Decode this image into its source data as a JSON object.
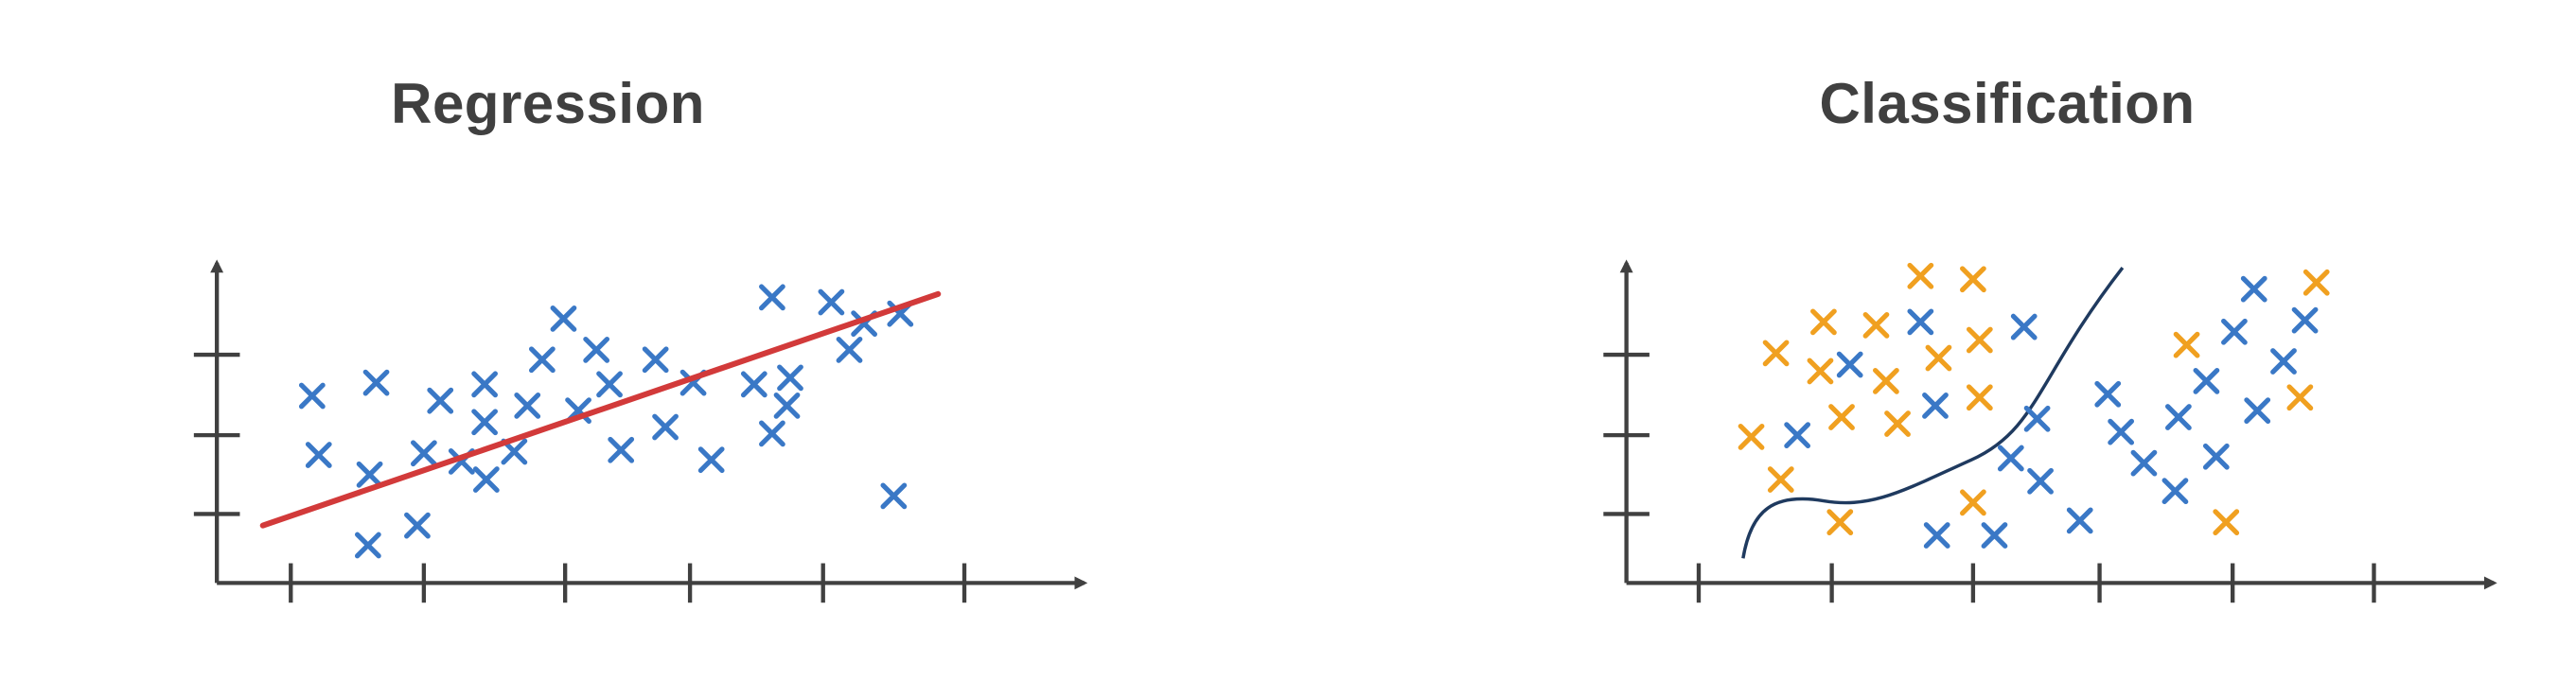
{
  "regression": {
    "title": "Regression",
    "colors": {
      "axis": "#404040",
      "marker": "#3a78c6",
      "fit_line": "#d23a3a"
    },
    "marker_icon": "x-mark",
    "points": [
      [
        190,
        241
      ],
      [
        194,
        277
      ],
      [
        225,
        289
      ],
      [
        224,
        332
      ],
      [
        229,
        233
      ],
      [
        254,
        320
      ],
      [
        258,
        276
      ],
      [
        268,
        244
      ],
      [
        281,
        281
      ],
      [
        295,
        234
      ],
      [
        295,
        257
      ],
      [
        296,
        292
      ],
      [
        313,
        275
      ],
      [
        321,
        247
      ],
      [
        330,
        219
      ],
      [
        343,
        194
      ],
      [
        352,
        250
      ],
      [
        363,
        213
      ],
      [
        371,
        234
      ],
      [
        378,
        274
      ],
      [
        399,
        219
      ],
      [
        405,
        260
      ],
      [
        422,
        233
      ],
      [
        433,
        280
      ],
      [
        459,
        234
      ],
      [
        470,
        181
      ],
      [
        470,
        264
      ],
      [
        481,
        230
      ],
      [
        479,
        247
      ],
      [
        506,
        184
      ],
      [
        517,
        213
      ],
      [
        526,
        197
      ],
      [
        548,
        191
      ],
      [
        544,
        302
      ]
    ],
    "fit_line": [
      [
        160,
        320
      ],
      [
        571,
        179
      ]
    ]
  },
  "classification": {
    "title": "Classification",
    "colors": {
      "axis": "#404040",
      "class_a": "#3a78c6",
      "class_b": "#f0a020",
      "boundary": "#1f3a5f"
    },
    "marker_icon": "x-mark",
    "class_a_points": [
      [
        1094,
        265
      ],
      [
        1126,
        222
      ],
      [
        1169,
        196
      ],
      [
        1178,
        247
      ],
      [
        1179,
        326
      ],
      [
        1214,
        326
      ],
      [
        1224,
        279
      ],
      [
        1232,
        199
      ],
      [
        1240,
        255
      ],
      [
        1242,
        293
      ],
      [
        1266,
        317
      ],
      [
        1283,
        240
      ],
      [
        1291,
        263
      ],
      [
        1305,
        282
      ],
      [
        1324,
        299
      ],
      [
        1326,
        254
      ],
      [
        1343,
        232
      ],
      [
        1349,
        278
      ],
      [
        1360,
        202
      ],
      [
        1372,
        176
      ],
      [
        1374,
        250
      ],
      [
        1390,
        220
      ],
      [
        1403,
        195
      ]
    ],
    "class_b_points": [
      [
        1066,
        266
      ],
      [
        1081,
        215
      ],
      [
        1084,
        292
      ],
      [
        1108,
        226
      ],
      [
        1110,
        196
      ],
      [
        1121,
        254
      ],
      [
        1120,
        318
      ],
      [
        1142,
        198
      ],
      [
        1148,
        232
      ],
      [
        1155,
        258
      ],
      [
        1169,
        168
      ],
      [
        1180,
        218
      ],
      [
        1201,
        170
      ],
      [
        1205,
        207
      ],
      [
        1205,
        242
      ],
      [
        1201,
        306
      ],
      [
        1331,
        210
      ],
      [
        1355,
        318
      ],
      [
        1400,
        242
      ],
      [
        1410,
        172
      ]
    ],
    "boundary": [
      [
        1061,
        340
      ],
      [
        1080,
        300
      ],
      [
        1110,
        305
      ],
      [
        1160,
        298
      ],
      [
        1200,
        280
      ],
      [
        1240,
        230
      ],
      [
        1292,
        163
      ]
    ]
  }
}
